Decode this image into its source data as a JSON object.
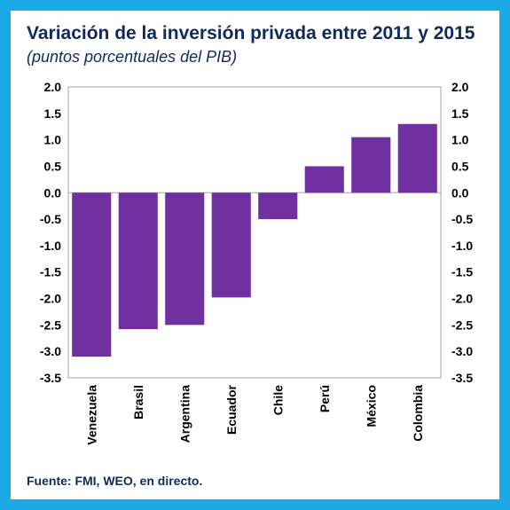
{
  "title": "Variación  de la inversión privada entre 2011 y 2015",
  "subtitle": "(puntos porcentuales del PIB)",
  "source": "Fuente: FMI, WEO, en directo.",
  "colors": {
    "frame": "#1BA9E8",
    "bar": "#7030A0",
    "text": "#0F2B5B"
  },
  "chart_data": {
    "type": "bar",
    "categories": [
      "Venezuela",
      "Brasil",
      "Argentina",
      "Ecuador",
      "Chile",
      "Perú",
      "México",
      "Colombia"
    ],
    "values": [
      -3.1,
      -2.58,
      -2.5,
      -1.98,
      -0.5,
      0.5,
      1.05,
      1.3
    ],
    "ylim": [
      -3.5,
      2.0
    ],
    "yticks": [
      "2.0",
      "1.5",
      "1.0",
      "0.5",
      "0.0",
      "-0.5",
      "-1.0",
      "-1.5",
      "-2.0",
      "-2.5",
      "-3.0",
      "-3.5"
    ],
    "title": "Variación  de la inversión privada entre 2011 y 2015",
    "xlabel": "",
    "ylabel": "",
    "grid": false,
    "legend": "none"
  }
}
